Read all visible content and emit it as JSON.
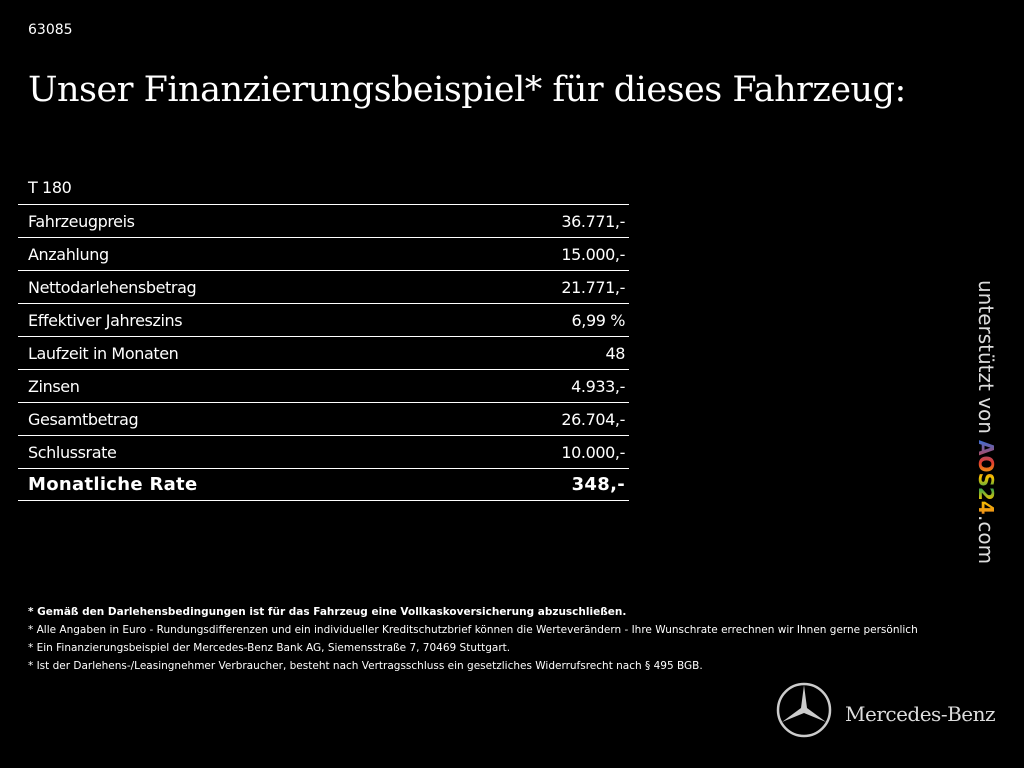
{
  "header": {
    "id": "63085",
    "title": "Unser Finanzierungsbeispiel* für dieses Fahrzeug:"
  },
  "table": {
    "caption": "T 180",
    "rows": [
      [
        "Fahrzeugpreis",
        "36.771,-"
      ],
      [
        "Anzahlung",
        "15.000,-"
      ],
      [
        "Nettodarlehensbetrag",
        "21.771,-"
      ],
      [
        "Effektiver Jahreszins",
        "6,99 %"
      ],
      [
        "Laufzeit in Monaten",
        "48"
      ],
      [
        "Zinsen",
        "4.933,-"
      ],
      [
        "Gesamtbetrag",
        "26.704,-"
      ],
      [
        "Schlussrate",
        "10.000,-"
      ]
    ],
    "total": [
      "Monatliche Rate",
      "348,-"
    ]
  },
  "footnotes": [
    "* Gemäß den Darlehensbedingungen ist für das Fahrzeug eine Vollkaskoversicherung abzuschließen.",
    "* Alle Angaben in Euro - Rundungsdifferenzen und ein individueller Kreditschutzbrief können die Werteverändern - Ihre Wunschrate errechnen wir Ihnen gerne persönlich",
    "* Ein Finanzierungsbeispiel der Mercedes-Benz Bank AG, Siemensstraße 7, 70469 Stuttgart.",
    "* Ist der Darlehens-/Leasingnehmer Verbraucher, besteht nach Vertragsschluss ein gesetzliches Widerrufsrecht nach § 495 BGB."
  ],
  "sidebar": {
    "prefix": "unterstützt von",
    "brand": "AOS24",
    "suffix": ".com"
  },
  "logo": {
    "text": "Mercedes-Benz"
  }
}
